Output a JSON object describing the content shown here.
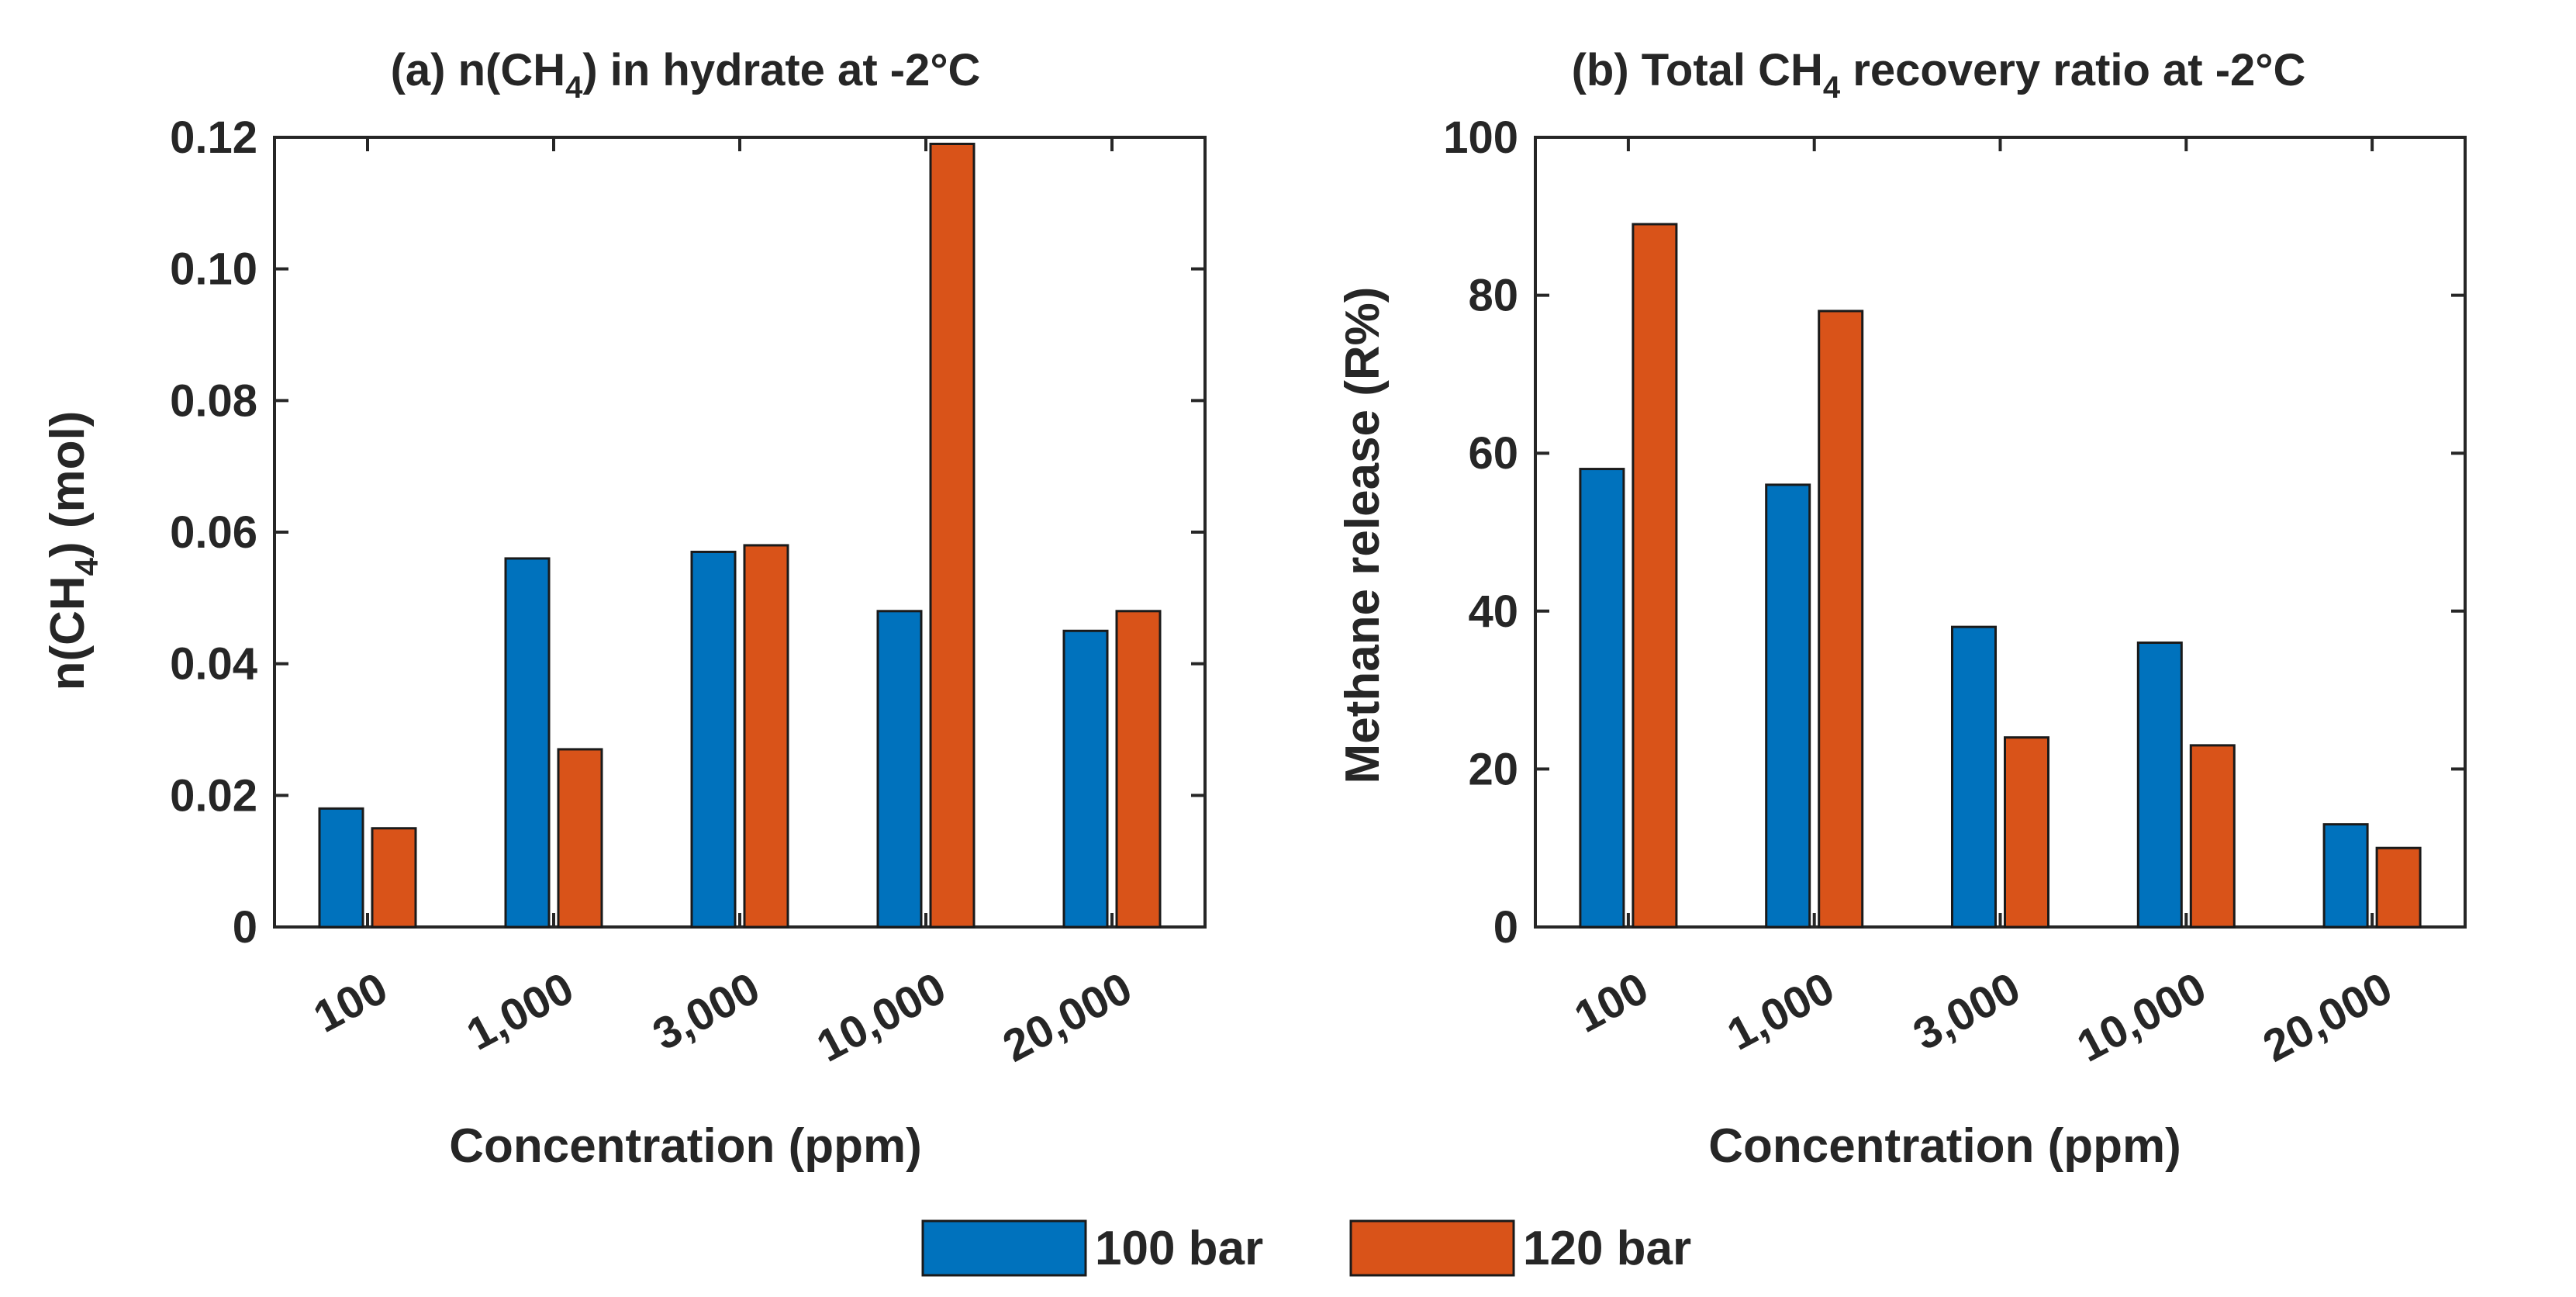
{
  "colors": {
    "series1": "#0072BD",
    "series2": "#D95319",
    "axis": "#262626"
  },
  "legend": {
    "items": [
      "100 bar",
      "120 bar"
    ]
  },
  "chart_data": [
    {
      "type": "bar",
      "title_parts": [
        "(a) n(CH",
        "4",
        ") in hydrate at -2°C"
      ],
      "xlabel": "Concentration (ppm)",
      "ylabel_parts": [
        "n(CH",
        "4",
        ") (mol)"
      ],
      "categories": [
        "100",
        "1,000",
        "3,000",
        "10,000",
        "20,000"
      ],
      "series": [
        {
          "name": "100 bar",
          "values": [
            0.018,
            0.056,
            0.057,
            0.048,
            0.045
          ]
        },
        {
          "name": "120 bar",
          "values": [
            0.015,
            0.027,
            0.058,
            0.119,
            0.048
          ]
        }
      ],
      "ylim": [
        0,
        0.12
      ],
      "yticks": [
        0,
        0.02,
        0.04,
        0.06,
        0.08,
        0.1,
        0.12
      ],
      "ytick_labels": [
        "0",
        "0.02",
        "0.04",
        "0.06",
        "0.08",
        "0.10",
        "0.12"
      ],
      "grid": false
    },
    {
      "type": "bar",
      "title_parts": [
        "(b) Total CH",
        "4",
        " recovery ratio at -2°C"
      ],
      "xlabel": "Concentration (ppm)",
      "ylabel_parts": [
        "Methane release (R%)"
      ],
      "categories": [
        "100",
        "1,000",
        "3,000",
        "10,000",
        "20,000"
      ],
      "series": [
        {
          "name": "100 bar",
          "values": [
            58,
            56,
            38,
            36,
            13
          ]
        },
        {
          "name": "120 bar",
          "values": [
            89,
            78,
            24,
            23,
            10
          ]
        }
      ],
      "ylim": [
        0,
        100
      ],
      "yticks": [
        0,
        20,
        40,
        60,
        80,
        100
      ],
      "ytick_labels": [
        "0",
        "20",
        "40",
        "60",
        "80",
        "100"
      ],
      "grid": false
    }
  ]
}
